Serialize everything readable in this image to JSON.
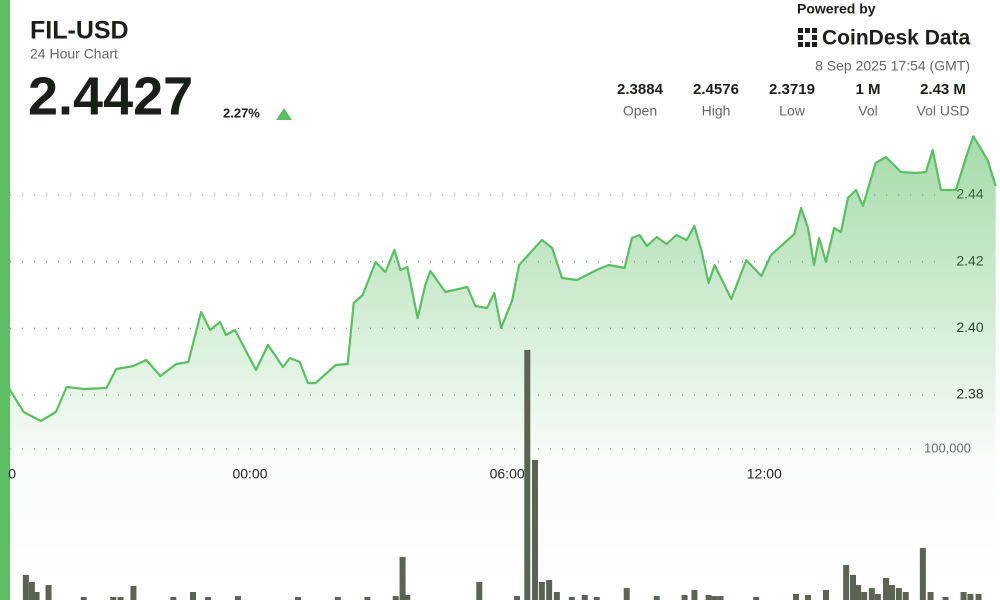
{
  "header": {
    "title": "FIL-USD",
    "subtitle": "24 Hour Chart",
    "price": "2.4427",
    "change": "2.27%",
    "powered_by": "Powered by",
    "brand": "CoinDesk Data",
    "timestamp": "8 Sep 2025 17:54 (GMT)",
    "stats": [
      {
        "value": "2.3884",
        "label": "Open"
      },
      {
        "value": "2.4576",
        "label": "High"
      },
      {
        "value": "2.3719",
        "label": "Low"
      },
      {
        "value": "1 M",
        "label": "Vol"
      },
      {
        "value": "2.43 M",
        "label": "Vol USD"
      }
    ]
  },
  "chart_data": {
    "type": "area",
    "x": [
      -5.63,
      -5.28,
      -4.88,
      -4.53,
      -4.28,
      -3.88,
      -3.35,
      -3.12,
      -2.72,
      -2.42,
      -2.09,
      -1.72,
      -1.44,
      -1.14,
      -0.93,
      -0.7,
      -0.56,
      -0.35,
      0.14,
      0.42,
      0.77,
      0.93,
      1.16,
      1.35,
      1.53,
      2.0,
      2.28,
      2.42,
      2.63,
      2.93,
      3.16,
      3.37,
      3.51,
      3.67,
      3.91,
      4.09,
      4.21,
      4.56,
      5.07,
      5.26,
      5.53,
      5.7,
      5.86,
      6.12,
      6.28,
      6.81,
      7.05,
      7.28,
      7.63,
      8.09,
      8.37,
      8.74,
      8.91,
      9.09,
      9.26,
      9.49,
      9.72,
      9.95,
      10.19,
      10.37,
      10.53,
      10.7,
      10.84,
      11.23,
      11.58,
      11.93,
      12.16,
      12.7,
      12.86,
      13.02,
      13.16,
      13.28,
      13.44,
      13.63,
      13.79,
      13.95,
      14.14,
      14.3,
      14.6,
      14.84,
      15.19,
      15.53,
      15.77,
      15.93,
      16.12,
      16.47,
      16.74,
      16.88,
      17.21,
      17.4
    ],
    "series": [
      {
        "color": "#5cbd63",
        "values": [
          2.3821,
          2.3749,
          2.3722,
          2.3749,
          2.3824,
          2.3818,
          2.3821,
          2.3878,
          2.3887,
          2.3905,
          2.3857,
          2.3893,
          2.3899,
          2.4049,
          2.3995,
          2.4019,
          2.398,
          2.3995,
          2.3875,
          2.395,
          2.3884,
          2.3911,
          2.3899,
          2.3836,
          2.3836,
          2.389,
          2.3893,
          2.4076,
          2.41,
          2.4199,
          2.4169,
          2.4235,
          2.4175,
          2.4184,
          2.4031,
          2.413,
          2.4172,
          2.4109,
          2.4124,
          2.4067,
          2.4061,
          2.4106,
          2.4001,
          2.4085,
          2.419,
          2.4265,
          2.4241,
          2.4151,
          2.4145,
          2.4175,
          2.419,
          2.4181,
          2.4271,
          2.428,
          2.4247,
          2.4274,
          2.4253,
          2.428,
          2.4265,
          2.4307,
          2.4235,
          2.4136,
          2.419,
          2.4088,
          2.4205,
          2.4157,
          2.422,
          2.4283,
          2.4361,
          2.4301,
          2.419,
          2.4271,
          2.4199,
          2.4301,
          2.4289,
          2.4391,
          2.4415,
          2.4367,
          2.4496,
          2.4514,
          2.4469,
          2.4466,
          2.4469,
          2.4535,
          2.4415,
          2.4415,
          2.4526,
          2.4576,
          2.4505,
          2.4427
        ]
      }
    ],
    "xlim": [
      -5.6,
      17.5
    ],
    "xticks": [
      {
        "value": -5.55,
        "label": "0"
      },
      {
        "value": 0,
        "label": "00:00"
      },
      {
        "value": 6,
        "label": "06:00"
      },
      {
        "value": 12,
        "label": "12:00"
      }
    ],
    "ylim": [
      2.3185,
      2.4595
    ],
    "yticks": [
      2.38,
      {
        "value": 2.4,
        "label": "2.40"
      },
      2.42,
      2.44
    ],
    "grid": true,
    "volume": {
      "color": "#5b6355",
      "x": [
        -5.23,
        -5.09,
        -4.98,
        -4.7,
        -3.88,
        -3.19,
        -3.02,
        -2.72,
        -1.79,
        -1.33,
        -0.98,
        -0.28,
        1.12,
        2.05,
        2.74,
        3.4,
        3.56,
        3.67,
        5.35,
        6.23,
        6.47,
        6.65,
        6.81,
        6.98,
        7.16,
        7.51,
        7.81,
        8.09,
        8.79,
        9.49,
        10.14,
        10.37,
        10.7,
        10.84,
        10.98,
        11.81,
        12.74,
        13.02,
        13.44,
        13.91,
        14.07,
        14.19,
        14.33,
        14.51,
        14.65,
        14.84,
        14.98,
        15.14,
        15.3,
        15.7,
        15.88,
        16.23,
        16.65,
        16.81,
        17.0
      ],
      "values": [
        16600,
        11900,
        5300,
        9900,
        2000,
        2000,
        2000,
        9300,
        2000,
        5300,
        2000,
        2600,
        2000,
        2000,
        2000,
        2600,
        28500,
        3300,
        11900,
        2600,
        165500,
        92700,
        11900,
        13200,
        5300,
        2000,
        3300,
        2000,
        7900,
        2600,
        3300,
        6600,
        3300,
        2600,
        2600,
        2000,
        4000,
        3300,
        6600,
        23200,
        16600,
        9900,
        5300,
        7900,
        4000,
        14600,
        9900,
        7900,
        5300,
        34400,
        5300,
        2000,
        5300,
        4000,
        4000
      ],
      "ylim": [
        0,
        397000
      ],
      "yticks": [
        {
          "value": 100000,
          "label": "100,000"
        }
      ]
    }
  }
}
